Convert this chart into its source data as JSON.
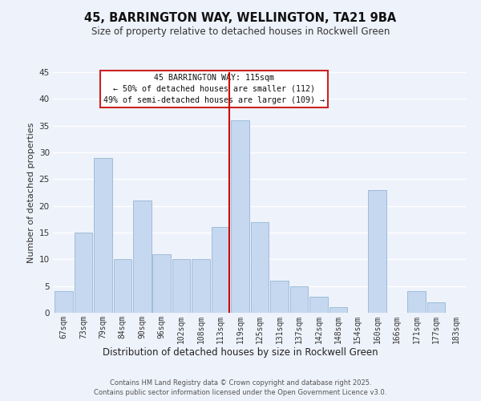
{
  "title": "45, BARRINGTON WAY, WELLINGTON, TA21 9BA",
  "subtitle": "Size of property relative to detached houses in Rockwell Green",
  "xlabel": "Distribution of detached houses by size in Rockwell Green",
  "ylabel": "Number of detached properties",
  "categories": [
    "67sqm",
    "73sqm",
    "79sqm",
    "84sqm",
    "90sqm",
    "96sqm",
    "102sqm",
    "108sqm",
    "113sqm",
    "119sqm",
    "125sqm",
    "131sqm",
    "137sqm",
    "142sqm",
    "148sqm",
    "154sqm",
    "160sqm",
    "166sqm",
    "171sqm",
    "177sqm",
    "183sqm"
  ],
  "values": [
    4,
    15,
    29,
    10,
    21,
    11,
    10,
    10,
    16,
    36,
    17,
    6,
    5,
    3,
    1,
    0,
    23,
    0,
    4,
    2,
    0
  ],
  "bar_color": "#c5d8f0",
  "bar_edge_color": "#a0bcd8",
  "background_color": "#eef2fb",
  "grid_color": "#ffffff",
  "vline_index": 8,
  "vline_color": "#cc0000",
  "annotation_title": "45 BARRINGTON WAY: 115sqm",
  "annotation_line1": "← 50% of detached houses are smaller (112)",
  "annotation_line2": "49% of semi-detached houses are larger (109) →",
  "ylim": [
    0,
    45
  ],
  "yticks": [
    0,
    5,
    10,
    15,
    20,
    25,
    30,
    35,
    40,
    45
  ],
  "footer1": "Contains HM Land Registry data © Crown copyright and database right 2025.",
  "footer2": "Contains public sector information licensed under the Open Government Licence v3.0."
}
